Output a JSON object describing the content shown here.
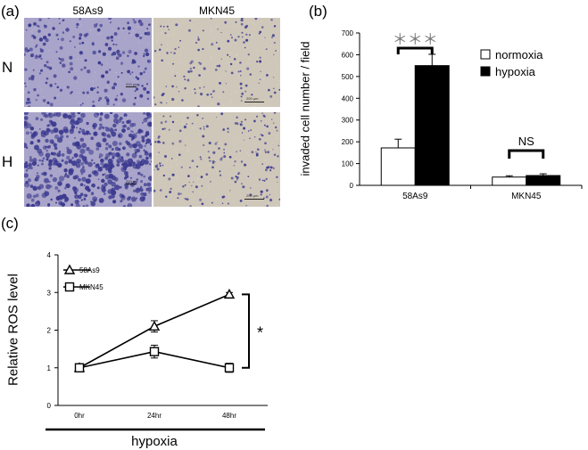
{
  "panel_a": {
    "letter": "(a)",
    "columns": [
      "58As9",
      "MKN45"
    ],
    "rows": [
      "N",
      "H"
    ],
    "colors": {
      "stain": "#3b3a8f",
      "bg_58As9": "#a9a4c9",
      "bg_MKN45": "#cfc7b9"
    },
    "micrographs": [
      {
        "row": "N",
        "column": "58As9",
        "density": 0.35,
        "scale_label": "200 µm"
      },
      {
        "row": "N",
        "column": "MKN45",
        "density": 0.2,
        "scale_label": "200 µm"
      },
      {
        "row": "H",
        "column": "58As9",
        "density": 0.9,
        "scale_label": "200 µm"
      },
      {
        "row": "H",
        "column": "MKN45",
        "density": 0.3,
        "scale_label": "200 µm"
      }
    ]
  },
  "panel_b": {
    "letter": "(b)",
    "chart_data": {
      "type": "bar",
      "categories": [
        "58As9",
        "MKN45"
      ],
      "series": [
        {
          "name": "normoxia",
          "values": [
            172,
            38
          ],
          "errors": [
            40,
            6
          ],
          "color": "#ffffff"
        },
        {
          "name": "hypoxia",
          "values": [
            550,
            45
          ],
          "errors": [
            52,
            8
          ],
          "color": "#000000"
        }
      ],
      "ylabel": "invaded cell number / field",
      "ylim": [
        0,
        700
      ],
      "yticks": [
        0,
        100,
        200,
        300,
        400,
        500,
        600,
        700
      ],
      "legend_position": "top-right",
      "grid": false,
      "annotations": [
        "＊＊＊",
        "NS"
      ]
    }
  },
  "panel_c": {
    "letter": "(c)",
    "chart_data": {
      "type": "line",
      "x": [
        "0hr",
        "24hr",
        "48hr"
      ],
      "series": [
        {
          "name": "58As9",
          "marker": "triangle",
          "values": [
            1.0,
            2.1,
            2.95
          ],
          "errors": [
            0.05,
            0.15,
            0.05
          ]
        },
        {
          "name": "MKN45",
          "marker": "square",
          "values": [
            1.0,
            1.43,
            1.0
          ],
          "errors": [
            0.05,
            0.17,
            0.12
          ]
        }
      ],
      "ylabel": "Relative ROS level",
      "ylim": [
        0,
        4
      ],
      "yticks": [
        0,
        1,
        2,
        3,
        4
      ],
      "legend_position": "top-left",
      "grid": false,
      "annotation": "*",
      "xbar_label": "hypoxia"
    }
  }
}
